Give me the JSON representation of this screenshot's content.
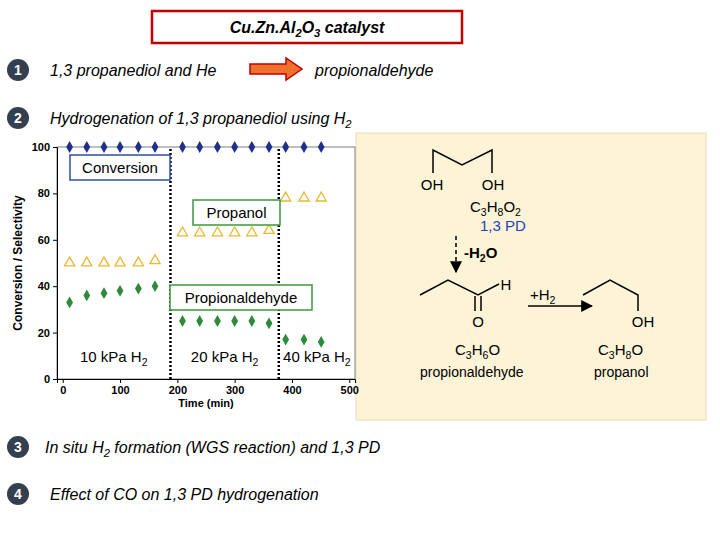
{
  "slide": {
    "title": "Cu.Zn.Al2O3 catalyst",
    "items": [
      {
        "number": 1,
        "text": "1,3 propanediol and He",
        "result": "propionaldehyde"
      },
      {
        "number": 2,
        "text": "Hydrogenation of 1,3 propanediol using H2"
      },
      {
        "number": 3,
        "text": "In situ H2 formation (WGS reaction) and 1,3 PD"
      },
      {
        "number": 4,
        "text": "Effect of CO on 1,3 PD hydrogenation"
      }
    ],
    "scheme": {
      "reactant": {
        "groups": [
          "OH",
          "OH"
        ],
        "formula": "C3H8O2",
        "name": "1,3 PD"
      },
      "step1": "-H2O",
      "intermediate": {
        "groups": [
          "H",
          "O"
        ],
        "formula": "C3H6O",
        "name": "propionaldehyde"
      },
      "step2": "+H2",
      "product": {
        "groups": [
          "OH"
        ],
        "formula": "C3H8O",
        "name": "propanol"
      }
    }
  },
  "chart_data": {
    "type": "scatter",
    "x_label": "Time (min)",
    "y_label": "Conversion / Selectivity",
    "xlim": [
      -10,
      510
    ],
    "xticks": [
      0,
      100,
      200,
      300,
      400,
      500
    ],
    "ylim": [
      0,
      100
    ],
    "yticks": [
      0,
      20,
      40,
      60,
      80,
      100
    ],
    "grid": false,
    "x": [
      12,
      42,
      72,
      100,
      132,
      161,
      209,
      239,
      270,
      300,
      330,
      360,
      389,
      421,
      451
    ],
    "series": [
      {
        "name": "Conversion",
        "color": "#1f2f8f",
        "marker": "diamond",
        "values": [
          100,
          100,
          100,
          100,
          100,
          100,
          100,
          100,
          100,
          100,
          100,
          100,
          100,
          100,
          100
        ]
      },
      {
        "name": "Propanol",
        "color": "#e8b830",
        "marker": "triangle-open",
        "values": [
          50,
          50,
          50,
          50,
          50,
          51,
          63,
          63,
          63,
          63,
          63,
          64,
          78,
          78,
          78
        ]
      },
      {
        "name": "Propionaldehyde",
        "color": "#2e8b3a",
        "marker": "diamond",
        "values": [
          33,
          36,
          37,
          38,
          39,
          40,
          25,
          25,
          25,
          25,
          25,
          24,
          17,
          17,
          16
        ]
      }
    ],
    "vlines": [
      188,
      377
    ],
    "phase_labels": [
      "10 kPa H2",
      "20 kPa H2",
      "40 kPa H2"
    ]
  }
}
